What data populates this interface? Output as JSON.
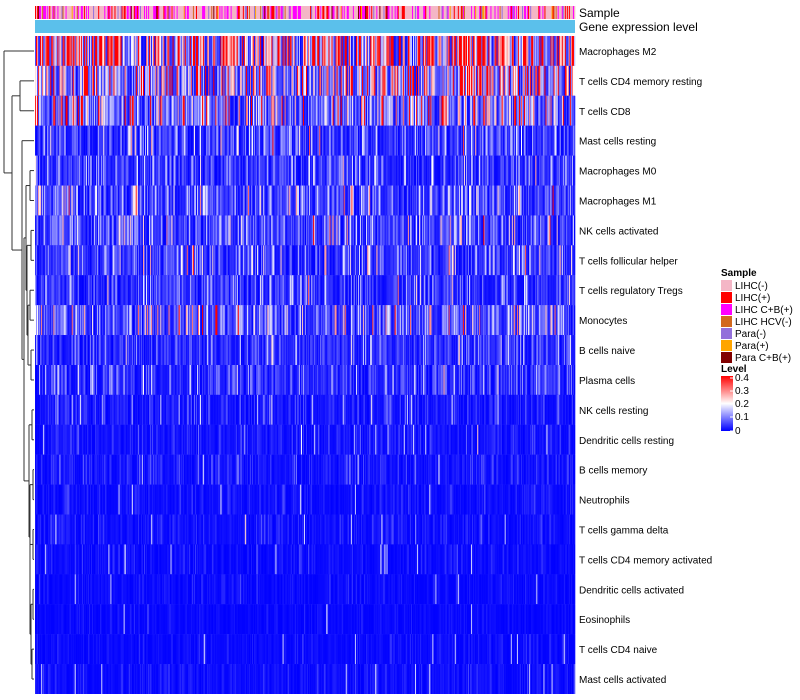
{
  "chart_data": {
    "type": "heatmap",
    "annotation_tracks": [
      "Sample",
      "Gene expression level"
    ],
    "rows": [
      {
        "name": "Macrophages M2",
        "mean": 0.28
      },
      {
        "name": "T cells CD4 memory resting",
        "mean": 0.18
      },
      {
        "name": "T cells CD8",
        "mean": 0.14
      },
      {
        "name": "Mast cells resting",
        "mean": 0.06
      },
      {
        "name": "Macrophages M0",
        "mean": 0.05
      },
      {
        "name": "Macrophages M1",
        "mean": 0.075
      },
      {
        "name": "NK cells activated",
        "mean": 0.065
      },
      {
        "name": "T cells follicular helper",
        "mean": 0.06
      },
      {
        "name": "T cells regulatory  Tregs",
        "mean": 0.05
      },
      {
        "name": "Monocytes",
        "mean": 0.09
      },
      {
        "name": "B cells naive",
        "mean": 0.045
      },
      {
        "name": "Plasma cells",
        "mean": 0.04
      },
      {
        "name": "NK cells resting",
        "mean": 0.025
      },
      {
        "name": "Dendritic cells resting",
        "mean": 0.02
      },
      {
        "name": "B cells memory",
        "mean": 0.02
      },
      {
        "name": "Neutrophils",
        "mean": 0.015
      },
      {
        "name": "T cells gamma delta",
        "mean": 0.015
      },
      {
        "name": "T cells CD4 memory activated",
        "mean": 0.012
      },
      {
        "name": "Dendritic cells activated",
        "mean": 0.01
      },
      {
        "name": "Eosinophils",
        "mean": 0.008
      },
      {
        "name": "T cells CD4 naive",
        "mean": 0.01
      },
      {
        "name": "Mast cells activated",
        "mean": 0.012
      }
    ],
    "sample_legend": {
      "title": "Sample",
      "items": [
        {
          "label": "LIHC(-)",
          "color": "#f4b6c6"
        },
        {
          "label": "LIHC(+)",
          "color": "#ff0000"
        },
        {
          "label": "LIHC C+B(+)",
          "color": "#ff00ff"
        },
        {
          "label": "LIHC HCV(-)",
          "color": "#d2691e"
        },
        {
          "label": "Para(-)",
          "color": "#9370db"
        },
        {
          "label": "Para(+)",
          "color": "#ffa500"
        },
        {
          "label": "Para C+B(+)",
          "color": "#800000"
        }
      ]
    },
    "level_legend": {
      "title": "Level",
      "ticks": [
        "0.4",
        "0.3",
        "0.2",
        "0.1",
        "0"
      ],
      "range": [
        0,
        0.4
      ],
      "colors": [
        "#0000ff",
        "#ffffff",
        "#ff0000"
      ]
    },
    "expression_track_color": "#5bc0eb",
    "n_columns": 530
  }
}
